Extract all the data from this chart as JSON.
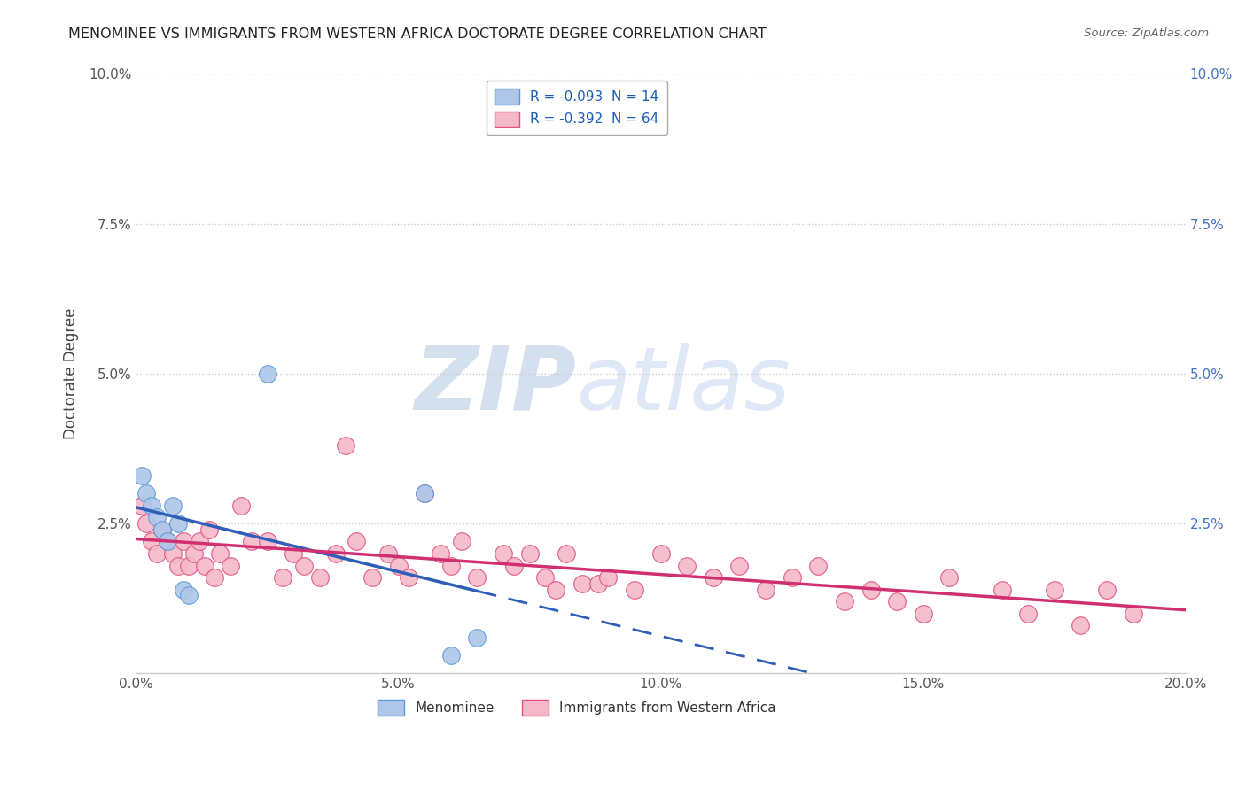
{
  "title": "MENOMINEE VS IMMIGRANTS FROM WESTERN AFRICA DOCTORATE DEGREE CORRELATION CHART",
  "source": "Source: ZipAtlas.com",
  "ylabel": "Doctorate Degree",
  "xlim": [
    0.0,
    0.2
  ],
  "ylim": [
    0.0,
    0.1
  ],
  "xticks": [
    0.0,
    0.05,
    0.1,
    0.15,
    0.2
  ],
  "xticklabels": [
    "0.0%",
    "5.0%",
    "10.0%",
    "15.0%",
    "20.0%"
  ],
  "yticks": [
    0.0,
    0.025,
    0.05,
    0.075,
    0.1
  ],
  "yticklabels_left": [
    "",
    "2.5%",
    "5.0%",
    "7.5%",
    "10.0%"
  ],
  "yticklabels_right": [
    "",
    "2.5%",
    "5.0%",
    "7.5%",
    "10.0%"
  ],
  "legend_entries": [
    {
      "label": "R = -0.093  N = 14",
      "color": "#aec6e8",
      "edge": "#5b9bd5"
    },
    {
      "label": "R = -0.392  N = 64",
      "color": "#f4b8c8",
      "edge": "#e05080"
    }
  ],
  "menominee_color": "#aec6e8",
  "menominee_edge": "#5b9bd5",
  "immigrants_color": "#f4b8c8",
  "immigrants_edge": "#e05080",
  "trend_menominee_color": "#2e5eb8",
  "trend_immigrants_color": "#d03070",
  "background_color": "#ffffff",
  "grid_color": "#cccccc",
  "watermark_zip": "ZIP",
  "watermark_atlas": "atlas",
  "watermark_color": "#c8d8f0",
  "right_yaxis_color": "#4472c4",
  "marker_size": 200,
  "menominee_x": [
    0.001,
    0.002,
    0.003,
    0.004,
    0.005,
    0.006,
    0.007,
    0.008,
    0.009,
    0.01,
    0.025,
    0.055,
    0.06,
    0.065
  ],
  "menominee_y": [
    0.033,
    0.03,
    0.028,
    0.026,
    0.024,
    0.022,
    0.028,
    0.025,
    0.014,
    0.013,
    0.05,
    0.03,
    0.003,
    0.006
  ],
  "immigrants_x": [
    0.001,
    0.002,
    0.003,
    0.004,
    0.005,
    0.006,
    0.007,
    0.008,
    0.009,
    0.01,
    0.011,
    0.012,
    0.013,
    0.014,
    0.015,
    0.016,
    0.018,
    0.02,
    0.022,
    0.025,
    0.028,
    0.03,
    0.032,
    0.035,
    0.038,
    0.04,
    0.042,
    0.045,
    0.048,
    0.05,
    0.052,
    0.055,
    0.058,
    0.06,
    0.062,
    0.065,
    0.07,
    0.072,
    0.075,
    0.078,
    0.08,
    0.082,
    0.085,
    0.088,
    0.09,
    0.095,
    0.1,
    0.105,
    0.11,
    0.115,
    0.12,
    0.125,
    0.13,
    0.135,
    0.14,
    0.145,
    0.15,
    0.155,
    0.165,
    0.17,
    0.175,
    0.18,
    0.185,
    0.19
  ],
  "immigrants_y": [
    0.028,
    0.025,
    0.022,
    0.02,
    0.024,
    0.022,
    0.02,
    0.018,
    0.022,
    0.018,
    0.02,
    0.022,
    0.018,
    0.024,
    0.016,
    0.02,
    0.018,
    0.028,
    0.022,
    0.022,
    0.016,
    0.02,
    0.018,
    0.016,
    0.02,
    0.038,
    0.022,
    0.016,
    0.02,
    0.018,
    0.016,
    0.03,
    0.02,
    0.018,
    0.022,
    0.016,
    0.02,
    0.018,
    0.02,
    0.016,
    0.014,
    0.02,
    0.015,
    0.015,
    0.016,
    0.014,
    0.02,
    0.018,
    0.016,
    0.018,
    0.014,
    0.016,
    0.018,
    0.012,
    0.014,
    0.012,
    0.01,
    0.016,
    0.014,
    0.01,
    0.014,
    0.008,
    0.014,
    0.01
  ]
}
